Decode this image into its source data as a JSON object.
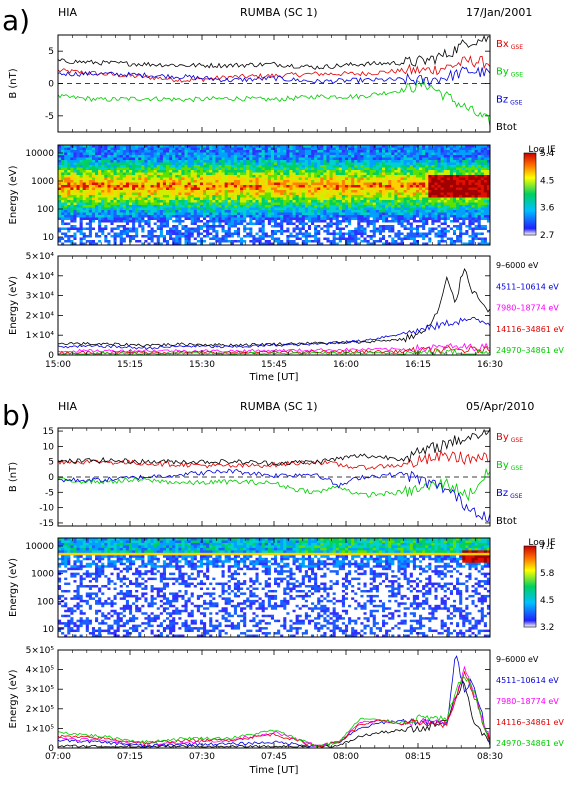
{
  "chart_data": [
    {
      "letter": "a)",
      "instrument": "HIA",
      "title": "RUMBA (SC 1)",
      "date": "17/Jan/2001",
      "xticks": [
        "15:00",
        "15:15",
        "15:30",
        "15:45",
        "16:00",
        "16:15",
        "16:30"
      ],
      "xlabel": "Time [UT]",
      "panels": [
        {
          "type": "line",
          "ylabel": "B (nT)",
          "ylim": [
            -7.5,
            7.5
          ],
          "yticks": [
            "5",
            "0",
            "-5"
          ],
          "zero_line": true,
          "series": [
            {
              "name": "Bx",
              "sub": "GSE",
              "color": "#e00000",
              "x": [
                0,
                0.1,
                0.2,
                0.3,
                0.4,
                0.5,
                0.6,
                0.7,
                0.8,
                0.85,
                0.9,
                0.95,
                1.0
              ],
              "y": [
                2,
                1.5,
                1,
                0.5,
                1,
                1.2,
                1.5,
                1.5,
                2,
                2,
                2.5,
                3.5,
                3.2
              ]
            },
            {
              "name": "By",
              "sub": "GSE",
              "color": "#00cc00",
              "x": [
                0,
                0.1,
                0.2,
                0.3,
                0.4,
                0.5,
                0.6,
                0.7,
                0.75,
                0.8,
                0.85,
                0.9,
                0.95,
                1.0
              ],
              "y": [
                -2,
                -2.5,
                -2.3,
                -2.5,
                -2.3,
                -2.5,
                -2,
                -2,
                -1.5,
                -1,
                0,
                -2,
                -4,
                -6
              ]
            },
            {
              "name": "Bz",
              "sub": "GSE",
              "color": "#0000dd",
              "x": [
                0,
                0.1,
                0.2,
                0.3,
                0.4,
                0.5,
                0.6,
                0.7,
                0.8,
                0.85,
                0.9,
                0.95,
                1.0
              ],
              "y": [
                1.5,
                1.5,
                1.3,
                1,
                0.5,
                0.8,
                0.3,
                0.5,
                0.6,
                0.4,
                1,
                2,
                1.5
              ]
            },
            {
              "name": "Btot",
              "sub": "",
              "color": "#000000",
              "x": [
                0,
                0.1,
                0.2,
                0.3,
                0.4,
                0.5,
                0.6,
                0.7,
                0.8,
                0.85,
                0.9,
                0.95,
                1.0
              ],
              "y": [
                3.5,
                3.2,
                3,
                2.8,
                2.8,
                3,
                2.5,
                3,
                3.2,
                3.5,
                4.5,
                6.5,
                7
              ]
            }
          ]
        },
        {
          "type": "heatmap",
          "ylabel": "Energy (eV)",
          "yticks": [
            "10000",
            "1000",
            "100",
            "10"
          ],
          "colorbar": {
            "title": "Log JE",
            "ticks": [
              "5.4",
              "4.5",
              "3.6",
              "2.7"
            ]
          }
        },
        {
          "type": "line",
          "ylabel": "Energy (eV)",
          "ylim": [
            0,
            50000
          ],
          "yticks": [
            "5×10⁴",
            "4×10⁴",
            "3×10⁴",
            "2×10⁴",
            "1×10⁴",
            "0"
          ],
          "series": [
            {
              "name": "9–6000 eV",
              "color": "#000000",
              "x": [
                0,
                0.1,
                0.2,
                0.3,
                0.4,
                0.5,
                0.6,
                0.7,
                0.8,
                0.85,
                0.88,
                0.9,
                0.92,
                0.94,
                0.96,
                0.98,
                1.0
              ],
              "y": [
                6000,
                5500,
                5000,
                5500,
                5000,
                5500,
                6000,
                6500,
                8000,
                12000,
                22000,
                38000,
                26000,
                45000,
                32000,
                28000,
                22000
              ]
            },
            {
              "name": "4511–10614 eV",
              "color": "#0000dd",
              "x": [
                0,
                0.1,
                0.2,
                0.3,
                0.4,
                0.5,
                0.6,
                0.7,
                0.8,
                0.85,
                0.9,
                0.95,
                1.0
              ],
              "y": [
                4000,
                4500,
                3500,
                4500,
                4000,
                5000,
                5500,
                7000,
                11000,
                13000,
                16000,
                18000,
                16000
              ]
            },
            {
              "name": "7980–18774 eV",
              "color": "#ff00ff",
              "x": [
                0,
                0.2,
                0.4,
                0.6,
                0.8,
                0.9,
                1.0
              ],
              "y": [
                2000,
                2200,
                2000,
                2500,
                3000,
                4000,
                4000
              ]
            },
            {
              "name": "14116–34861 eV",
              "color": "#e00000",
              "x": [
                0,
                0.2,
                0.4,
                0.6,
                0.8,
                0.9,
                1.0
              ],
              "y": [
                1200,
                1300,
                1200,
                1500,
                1800,
                2500,
                2500
              ]
            },
            {
              "name": "24970–34861 eV",
              "color": "#00cc00",
              "x": [
                0,
                0.2,
                0.4,
                0.6,
                0.8,
                0.9,
                1.0
              ],
              "y": [
                600,
                700,
                600,
                800,
                900,
                1200,
                1200
              ]
            }
          ]
        }
      ]
    },
    {
      "letter": "b)",
      "instrument": "HIA",
      "title": "RUMBA (SC 1)",
      "date": "05/Apr/2010",
      "xticks": [
        "07:00",
        "07:15",
        "07:30",
        "07:45",
        "08:00",
        "08:15",
        "08:30"
      ],
      "xlabel": "Time [UT]",
      "panels": [
        {
          "type": "line",
          "ylabel": "B (nT)",
          "ylim": [
            -16,
            16
          ],
          "yticks": [
            "15",
            "10",
            "5",
            "0",
            "-5",
            "-10",
            "-15"
          ],
          "zero_line": true,
          "series": [
            {
              "name": "By",
              "sub": "GSE",
              "color": "#e00000",
              "x": [
                0,
                0.1,
                0.2,
                0.3,
                0.4,
                0.5,
                0.6,
                0.65,
                0.7,
                0.8,
                0.9,
                0.95,
                1.0
              ],
              "y": [
                5,
                5,
                4.5,
                4,
                3.5,
                4,
                5,
                4,
                3,
                4,
                7,
                6,
                6
              ]
            },
            {
              "name": "By",
              "sub": "GSE",
              "color": "#00cc00",
              "x": [
                0,
                0.1,
                0.2,
                0.3,
                0.4,
                0.5,
                0.55,
                0.6,
                0.65,
                0.7,
                0.8,
                0.9,
                0.95,
                1.0
              ],
              "y": [
                -1,
                -1.5,
                -1,
                -2,
                -1.5,
                -2,
                -4,
                -5,
                -3,
                -6,
                -5,
                -2,
                -6,
                2
              ]
            },
            {
              "name": "Bz",
              "sub": "GSE",
              "color": "#0000dd",
              "x": [
                0,
                0.1,
                0.2,
                0.3,
                0.4,
                0.5,
                0.6,
                0.65,
                0.7,
                0.8,
                0.9,
                0.95,
                1.0
              ],
              "y": [
                -1,
                -1,
                0,
                1,
                2,
                0.5,
                1,
                -3,
                0,
                1,
                -4,
                -10,
                -13
              ]
            },
            {
              "name": "Btot",
              "sub": "",
              "color": "#000000",
              "x": [
                0,
                0.1,
                0.2,
                0.3,
                0.4,
                0.5,
                0.6,
                0.65,
                0.7,
                0.8,
                0.9,
                0.95,
                1.0
              ],
              "y": [
                5,
                5.5,
                5,
                5,
                5,
                4.5,
                5,
                6,
                7,
                6,
                11,
                13,
                15
              ]
            }
          ]
        },
        {
          "type": "heatmap",
          "ylabel": "Energy (eV)",
          "yticks": [
            "10000",
            "1000",
            "100",
            "10"
          ],
          "colorbar": {
            "title": "Log JE",
            "ticks": [
              "7.1",
              "5.8",
              "4.5",
              "3.2"
            ]
          }
        },
        {
          "type": "line",
          "ylabel": "Energy (eV)",
          "ylim": [
            0,
            500000
          ],
          "yticks": [
            "5×10⁵",
            "4×10⁵",
            "3×10⁵",
            "2×10⁵",
            "1×10⁵",
            "0"
          ],
          "series": [
            {
              "name": "9–6000 eV",
              "color": "#000000",
              "x": [
                0,
                0.1,
                0.2,
                0.3,
                0.4,
                0.5,
                0.6,
                0.65,
                0.7,
                0.75,
                0.8,
                0.85,
                0.9,
                0.92,
                0.94,
                0.96,
                1.0
              ],
              "y": [
                10000,
                8000,
                5000,
                8000,
                5000,
                6000,
                8000,
                10000,
                60000,
                80000,
                90000,
                100000,
                150000,
                250000,
                350000,
                150000,
                10000
              ]
            },
            {
              "name": "4511–10614 eV",
              "color": "#0000dd",
              "x": [
                0,
                0.1,
                0.2,
                0.3,
                0.4,
                0.5,
                0.6,
                0.65,
                0.7,
                0.75,
                0.8,
                0.85,
                0.9,
                0.92,
                0.94,
                0.96,
                1.0
              ],
              "y": [
                40000,
                30000,
                10000,
                20000,
                20000,
                30000,
                10000,
                30000,
                100000,
                130000,
                140000,
                130000,
                120000,
                480000,
                300000,
                350000,
                20000
              ]
            },
            {
              "name": "7980–18774 eV",
              "color": "#ff00ff",
              "x": [
                0,
                0.1,
                0.2,
                0.3,
                0.4,
                0.5,
                0.6,
                0.65,
                0.7,
                0.75,
                0.8,
                0.85,
                0.9,
                0.92,
                0.94,
                0.96,
                1.0
              ],
              "y": [
                50000,
                40000,
                20000,
                30000,
                40000,
                80000,
                10000,
                30000,
                130000,
                140000,
                120000,
                140000,
                130000,
                250000,
                400000,
                300000,
                40000
              ]
            },
            {
              "name": "14116–34861 eV",
              "color": "#e00000",
              "x": [
                0,
                0.1,
                0.2,
                0.3,
                0.4,
                0.5,
                0.6,
                0.65,
                0.7,
                0.75,
                0.8,
                0.85,
                0.9,
                0.92,
                0.94,
                0.96,
                1.0
              ],
              "y": [
                60000,
                50000,
                25000,
                40000,
                40000,
                70000,
                10000,
                30000,
                120000,
                140000,
                120000,
                130000,
                120000,
                250000,
                380000,
                280000,
                30000
              ]
            },
            {
              "name": "24970–34861 eV",
              "color": "#00cc00",
              "x": [
                0,
                0.1,
                0.2,
                0.3,
                0.4,
                0.5,
                0.6,
                0.65,
                0.7,
                0.75,
                0.8,
                0.85,
                0.9,
                0.92,
                0.94,
                0.96,
                1.0
              ],
              "y": [
                80000,
                60000,
                30000,
                50000,
                50000,
                90000,
                10000,
                30000,
                150000,
                140000,
                130000,
                160000,
                140000,
                280000,
                380000,
                300000,
                20000
              ]
            }
          ]
        }
      ]
    }
  ]
}
